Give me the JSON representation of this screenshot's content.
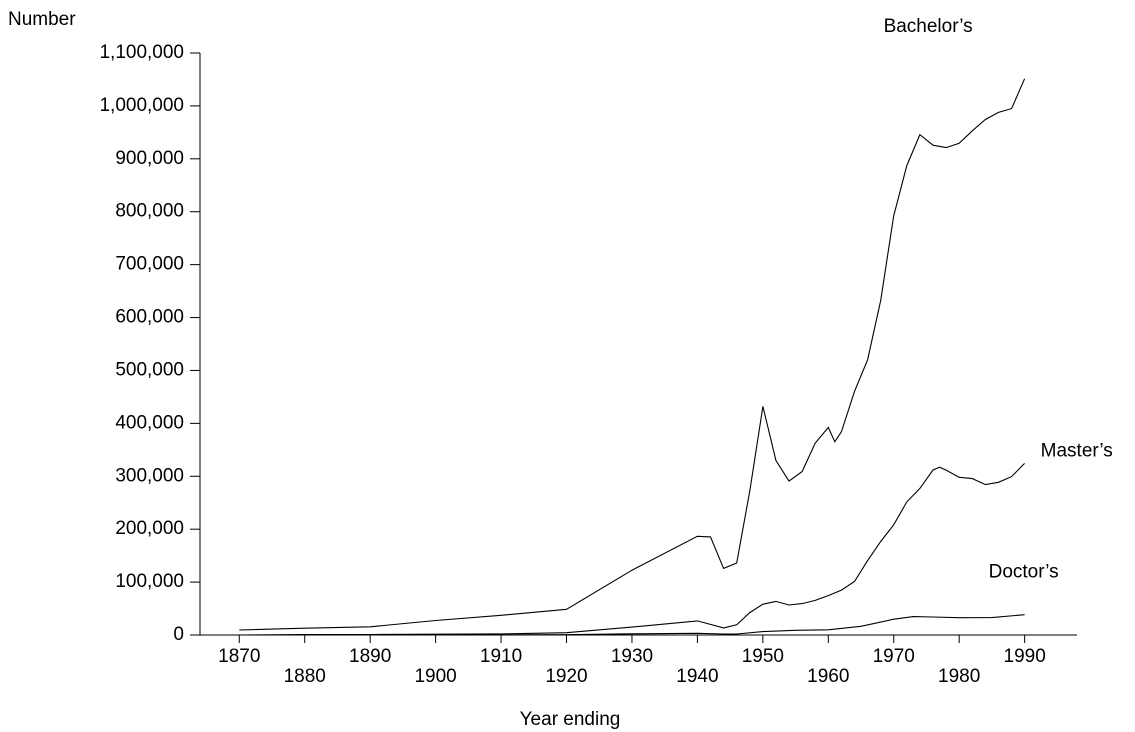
{
  "chart_data": {
    "type": "line",
    "y_label": "Number",
    "x_label": "Year ending",
    "xlim": [
      1864,
      1998
    ],
    "xticks": [
      1870,
      1880,
      1890,
      1900,
      1910,
      1920,
      1930,
      1940,
      1950,
      1960,
      1970,
      1980,
      1990
    ],
    "ylim": [
      0,
      1100000
    ],
    "yticks": [
      0,
      {
        "value": 100000,
        "label": "100,000"
      },
      {
        "value": 200000,
        "label": "200,000"
      },
      {
        "value": 300000,
        "label": "300,000"
      },
      {
        "value": 400000,
        "label": "400,000"
      },
      {
        "value": 500000,
        "label": "500,000"
      },
      {
        "value": 600000,
        "label": "600,000"
      },
      {
        "value": 700000,
        "label": "700,000"
      },
      {
        "value": 800000,
        "label": "800,000"
      },
      {
        "value": 900000,
        "label": "900,000"
      },
      {
        "value": 1000000,
        "label": "1,000,000"
      },
      {
        "value": 1100000,
        "label": "1,100,000"
      }
    ],
    "grid": false,
    "series": [
      {
        "name": "Bachelor’s",
        "color": "#000000",
        "x": [
          1870,
          1880,
          1890,
          1900,
          1910,
          1920,
          1930,
          1940,
          1942,
          1944,
          1946,
          1948,
          1950,
          1952,
          1954,
          1956,
          1958,
          1960,
          1961,
          1962,
          1964,
          1966,
          1968,
          1970,
          1972,
          1974,
          1976,
          1978,
          1980,
          1982,
          1984,
          1986,
          1988,
          1990
        ],
        "values": [
          9371,
          12896,
          15539,
          27410,
          37199,
          48622,
          122484,
          186500,
          185346,
          125863,
          136174,
          272311,
          432058,
          329986,
          290825,
          308812,
          362554,
          392440,
          365174,
          383961,
          460467,
          520115,
          632289,
          792316,
          887273,
          945776,
          925746,
          921204,
          929417,
          952998,
          974309,
          987823,
          994829,
          1051344
        ]
      },
      {
        "name": "Master’s",
        "color": "#000000",
        "x": [
          1870,
          1880,
          1890,
          1900,
          1910,
          1920,
          1930,
          1940,
          1944,
          1946,
          1948,
          1950,
          1952,
          1954,
          1956,
          1958,
          1960,
          1962,
          1964,
          1966,
          1968,
          1970,
          1972,
          1974,
          1976,
          1977,
          1978,
          1980,
          1982,
          1984,
          1986,
          1988,
          1990
        ],
        "values": [
          0,
          879,
          1015,
          1583,
          2113,
          4279,
          14969,
          26731,
          13414,
          19209,
          42400,
          58183,
          63534,
          56788,
          59258,
          65487,
          74435,
          84889,
          101050,
          140548,
          176749,
          208291,
          251633,
          277033,
          311771,
          317164,
          311620,
          298081,
          295546,
          284263,
          288567,
          299317,
          324301
        ]
      },
      {
        "name": "Doctor’s",
        "color": "#000000",
        "x": [
          1870,
          1880,
          1890,
          1900,
          1910,
          1920,
          1930,
          1940,
          1944,
          1946,
          1950,
          1955,
          1960,
          1965,
          1970,
          1973,
          1976,
          1980,
          1985,
          1990
        ],
        "values": [
          1,
          54,
          149,
          382,
          443,
          615,
          2299,
          3290,
          1966,
          1966,
          6420,
          8840,
          9829,
          16467,
          29866,
          34777,
          34064,
          32615,
          32943,
          38371
        ]
      }
    ]
  }
}
